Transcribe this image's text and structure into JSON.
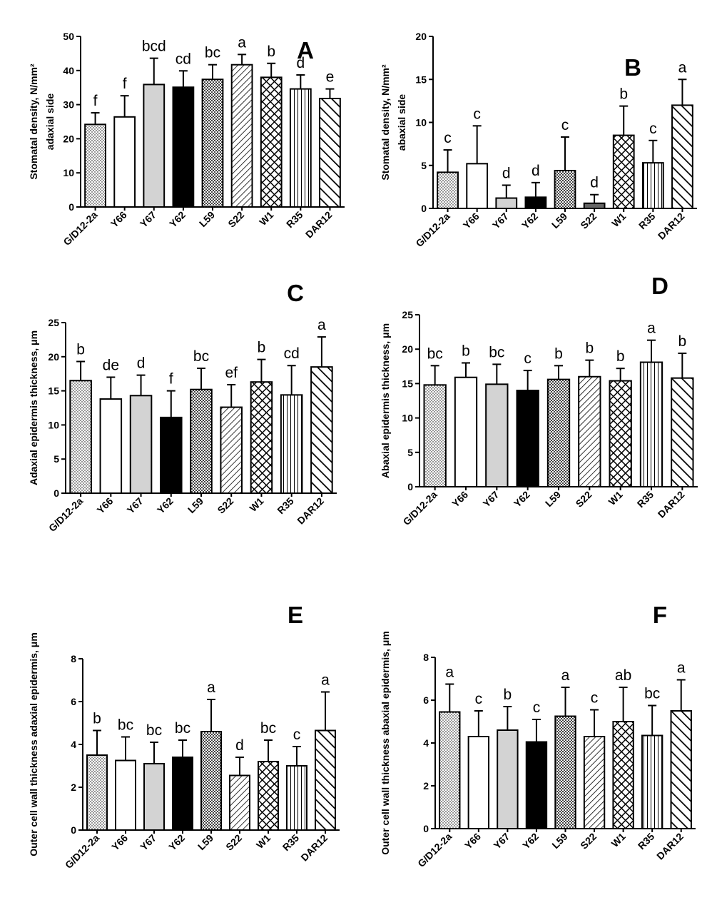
{
  "colors": {
    "axis": "#000000",
    "black_fill": "#000000",
    "grey_fill": "#d3d3d3",
    "white_fill": "#ffffff",
    "s22_solid_fill": "#666666"
  },
  "categories": [
    "G/D12-2a",
    "Y66",
    "Y67",
    "Y62",
    "L59",
    "S22",
    "W1",
    "R35",
    "DAR12"
  ],
  "fill_styles": [
    "dots",
    "white",
    "grey",
    "black",
    "check",
    "diag-fine",
    "crosshatch",
    "vlines",
    "diag-bold"
  ],
  "chart_data": [
    {
      "id": "A",
      "type": "bar",
      "panel_label": "A",
      "ylabel_lines": [
        "Stomatal density, N/mm²",
        "adaxial side"
      ],
      "ylim": [
        0,
        50
      ],
      "yticks": [
        "0",
        "10",
        "20",
        "30",
        "40",
        "50"
      ],
      "values": [
        24.2,
        26.4,
        35.9,
        35.1,
        37.4,
        41.7,
        38.0,
        34.6,
        31.8
      ],
      "errors": [
        3.4,
        6.2,
        7.7,
        4.8,
        4.3,
        3.0,
        4.1,
        4.1,
        2.8
      ],
      "letters": [
        "f",
        "f",
        "bcd",
        "cd",
        "bc",
        "a",
        "b",
        "d",
        "e"
      ]
    },
    {
      "id": "B",
      "type": "bar",
      "panel_label": "B",
      "ylabel_lines": [
        "Stomatal density, N/mm²",
        "abaxial side"
      ],
      "ylim": [
        0,
        20
      ],
      "yticks": [
        "0",
        "5",
        "10",
        "15",
        "20"
      ],
      "values": [
        4.2,
        5.2,
        1.2,
        1.3,
        4.4,
        0.6,
        8.5,
        5.3,
        12.0
      ],
      "errors": [
        2.6,
        4.4,
        1.5,
        1.7,
        3.9,
        1.0,
        3.4,
        2.6,
        3.0
      ],
      "letters": [
        "c",
        "c",
        "d",
        "d",
        "c",
        "d",
        "b",
        "c",
        "a"
      ],
      "s22_fill": "solid-grey"
    },
    {
      "id": "C",
      "type": "bar",
      "panel_label": "C",
      "ylabel_lines": [
        "Adaxial epidermis thickness, μm"
      ],
      "ylim": [
        0,
        25
      ],
      "yticks": [
        "0",
        "5",
        "10",
        "15",
        "20",
        "25"
      ],
      "values": [
        16.5,
        13.8,
        14.3,
        11.1,
        15.2,
        12.6,
        16.3,
        14.4,
        18.5
      ],
      "errors": [
        2.8,
        3.2,
        3.0,
        3.9,
        3.1,
        3.3,
        3.3,
        4.3,
        4.4
      ],
      "letters": [
        "b",
        "de",
        "d",
        "f",
        "bc",
        "ef",
        "b",
        "cd",
        "a"
      ]
    },
    {
      "id": "D",
      "type": "bar",
      "panel_label": "D",
      "ylabel_lines": [
        "Abaxial epidermis thickness, μm"
      ],
      "ylim": [
        0,
        25
      ],
      "yticks": [
        "0",
        "5",
        "10",
        "15",
        "20",
        "25"
      ],
      "values": [
        14.8,
        15.9,
        14.9,
        14.0,
        15.6,
        16.0,
        15.4,
        18.1,
        15.8
      ],
      "errors": [
        2.8,
        2.1,
        2.9,
        2.9,
        2.0,
        2.4,
        1.8,
        3.2,
        3.6
      ],
      "letters": [
        "bc",
        "b",
        "bc",
        "c",
        "b",
        "b",
        "b",
        "a",
        "b"
      ]
    },
    {
      "id": "E",
      "type": "bar",
      "panel_label": "E",
      "ylabel_lines": [
        "Outer cell wall thickness adaxial epidermis, μm"
      ],
      "ylim": [
        0,
        8
      ],
      "yticks": [
        "0",
        "2",
        "4",
        "6",
        "8"
      ],
      "values": [
        3.5,
        3.25,
        3.1,
        3.4,
        4.6,
        2.55,
        3.2,
        3.0,
        4.65
      ],
      "errors": [
        1.15,
        1.1,
        1.0,
        0.8,
        1.5,
        0.85,
        1.0,
        0.9,
        1.8
      ],
      "letters": [
        "b",
        "bc",
        "bc",
        "bc",
        "a",
        "d",
        "bc",
        "c",
        "a"
      ]
    },
    {
      "id": "F",
      "type": "bar",
      "panel_label": "F",
      "ylabel_lines": [
        "Outer cell wall thickness abaxial epidermis, μm"
      ],
      "ylim": [
        0,
        8
      ],
      "yticks": [
        "0",
        "2",
        "4",
        "6",
        "8"
      ],
      "values": [
        5.45,
        4.3,
        4.6,
        4.05,
        5.25,
        4.3,
        5.0,
        4.35,
        5.5
      ],
      "errors": [
        1.3,
        1.2,
        1.1,
        1.05,
        1.35,
        1.25,
        1.6,
        1.4,
        1.45
      ],
      "letters": [
        "a",
        "c",
        "b",
        "c",
        "a",
        "c",
        "ab",
        "bc",
        "a"
      ]
    }
  ]
}
